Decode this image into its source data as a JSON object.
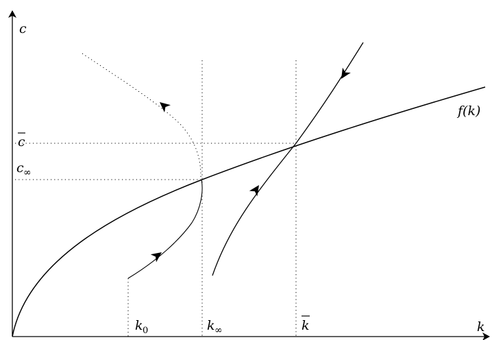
{
  "axes": {
    "y_label": "c",
    "x_label": "k"
  },
  "curve_label": "f(k)",
  "y_ticks": {
    "c_bar": "c",
    "c_inf_base": "c",
    "c_inf_sub": "∞"
  },
  "x_ticks": {
    "k0_base": "k",
    "k0_sub": "0",
    "kinf_base": "k",
    "kinf_sub": "∞",
    "k_bar": "k"
  }
}
